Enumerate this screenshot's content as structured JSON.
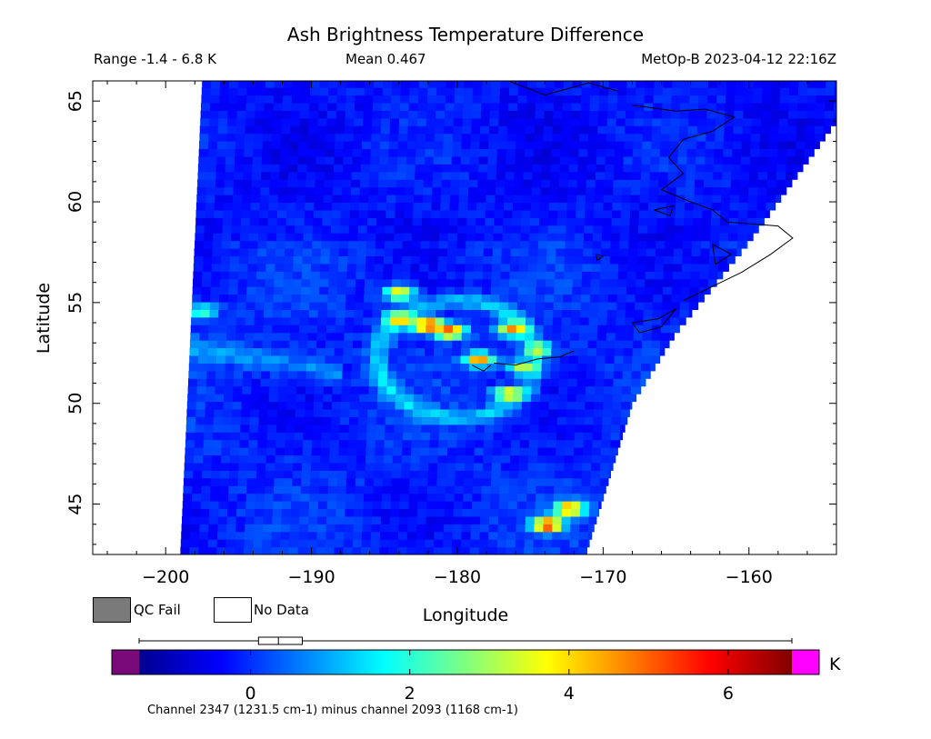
{
  "header": {
    "title": "Ash Brightness Temperature Difference",
    "range": "Range -1.4 - 6.8 K",
    "mean": "Mean 0.467",
    "satellite_time": "MetOp-B 2023-04-12 22:16Z"
  },
  "legend": {
    "qc_fail": "QC Fail",
    "no_data": "No Data",
    "qc_fail_color": "#7a7a7a",
    "no_data_color": "#ffffff"
  },
  "colorbar": {
    "unit": "K",
    "channel_text": "Channel 2347 (1231.5 cm-1) minus channel 2093 (1168 cm-1)",
    "range": [
      -1.4,
      6.8
    ],
    "ticks": [
      0,
      2,
      4,
      6
    ],
    "under_color": "#7a0a7a",
    "over_color": "#ff00ff",
    "colors": [
      "#00008f",
      "#0000ff",
      "#0080ff",
      "#00ffff",
      "#80ff80",
      "#ffff00",
      "#ff8000",
      "#ff0000",
      "#800000"
    ],
    "boxplot": {
      "min": -1.4,
      "q1": 0.1,
      "median": 0.35,
      "q3": 0.65,
      "max": 6.8
    }
  },
  "chart_data": {
    "type": "heatmap",
    "title": "Ash Brightness Temperature Difference",
    "xlabel": "Longitude",
    "ylabel": "Latitude",
    "xlim": [
      -205,
      -154
    ],
    "ylim": [
      42.5,
      66
    ],
    "xticks": [
      -200,
      -190,
      -180,
      -170,
      -160
    ],
    "yticks": [
      45,
      50,
      55,
      60,
      65
    ],
    "value_range": [
      -1.4,
      6.8
    ],
    "value_unit": "K",
    "mean": 0.467,
    "swath_edges": {
      "west": [
        [
          -197.5,
          66
        ],
        [
          -199.0,
          42.5
        ]
      ],
      "east": [
        [
          -154,
          64
        ],
        [
          -160,
          58
        ],
        [
          -165,
          53.5
        ],
        [
          -168,
          50
        ],
        [
          -171.2,
          42.5
        ]
      ]
    },
    "features": [
      {
        "lon": -182,
        "lat": 53.9,
        "value": 6.3
      },
      {
        "lon": -180.5,
        "lat": 53.6,
        "value": 5.6
      },
      {
        "lon": -184,
        "lat": 54.2,
        "value": 4.6
      },
      {
        "lon": -184,
        "lat": 55.5,
        "value": 4.2
      },
      {
        "lon": -176.2,
        "lat": 53.7,
        "value": 4.8
      },
      {
        "lon": -178.5,
        "lat": 52.2,
        "value": 4.9
      },
      {
        "lon": -176.5,
        "lat": 50.5,
        "value": 4.4
      },
      {
        "lon": -175.5,
        "lat": 51.8,
        "value": 3.5
      },
      {
        "lon": -174.5,
        "lat": 52.7,
        "value": 3.6
      },
      {
        "lon": -173.8,
        "lat": 44.0,
        "value": 6.2
      },
      {
        "lon": -172.3,
        "lat": 44.8,
        "value": 5.4
      },
      {
        "lon": -197.5,
        "lat": 54.6,
        "value": 2.6
      }
    ]
  }
}
